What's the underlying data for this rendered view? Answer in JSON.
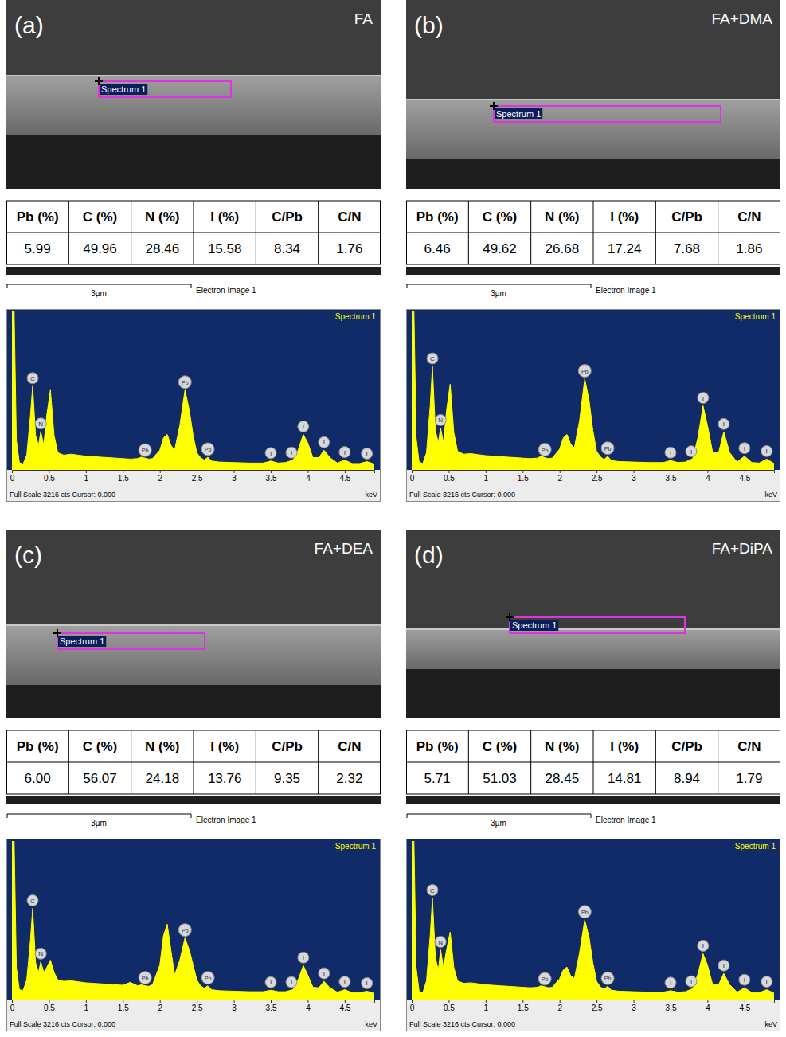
{
  "panels": [
    {
      "letter": "(a)",
      "sample": "FA",
      "spectrum_box": "Spectrum 1",
      "scale_bar": "3µm",
      "image_label": "Electron Image 1",
      "table": {
        "headers": [
          "Pb (%)",
          "C (%)",
          "N (%)",
          "I (%)",
          "C/Pb",
          "C/N"
        ],
        "rows": [
          [
            "5.99",
            "49.96",
            "28.46",
            "15.58",
            "8.34",
            "1.76"
          ]
        ]
      }
    },
    {
      "letter": "(b)",
      "sample": "FA+DMA",
      "spectrum_box": "Spectrum 1",
      "scale_bar": "3µm",
      "image_label": "Electron Image 1",
      "table": {
        "headers": [
          "Pb (%)",
          "C (%)",
          "N (%)",
          "I (%)",
          "C/Pb",
          "C/N"
        ],
        "rows": [
          [
            "6.46",
            "49.62",
            "26.68",
            "17.24",
            "7.68",
            "1.86"
          ]
        ]
      }
    },
    {
      "letter": "(c)",
      "sample": "FA+DEA",
      "spectrum_box": "Spectrum 1",
      "scale_bar": "3µm",
      "image_label": "Electron Image 1",
      "table": {
        "headers": [
          "Pb (%)",
          "C (%)",
          "N (%)",
          "I (%)",
          "C/Pb",
          "C/N"
        ],
        "rows": [
          [
            "6.00",
            "56.07",
            "24.18",
            "13.76",
            "9.35",
            "2.32"
          ]
        ]
      }
    },
    {
      "letter": "(d)",
      "sample": "FA+DiPA",
      "spectrum_box": "Spectrum 1",
      "scale_bar": "3µm",
      "image_label": "Electron Image 1",
      "table": {
        "headers": [
          "Pb (%)",
          "C (%)",
          "N (%)",
          "I (%)",
          "C/Pb",
          "C/N"
        ],
        "rows": [
          [
            "5.71",
            "51.03",
            "28.45",
            "14.81",
            "8.94",
            "1.79"
          ]
        ]
      }
    }
  ],
  "chart_data": [
    {
      "type": "area",
      "title": "Spectrum 1",
      "subtitle": "Full Scale 3216 cts Cursor: 0.000",
      "x_label": "keV",
      "color": "#ffff00",
      "x": [
        0,
        0.03,
        0.06,
        0.1,
        0.15,
        0.2,
        0.25,
        0.28,
        0.32,
        0.36,
        0.39,
        0.43,
        0.47,
        0.52,
        0.57,
        0.62,
        0.7,
        0.8,
        0.9,
        1.0,
        1.1,
        1.2,
        1.3,
        1.4,
        1.5,
        1.6,
        1.7,
        1.75,
        1.8,
        1.85,
        1.9,
        2.0,
        2.05,
        2.1,
        2.15,
        2.2,
        2.27,
        2.34,
        2.4,
        2.45,
        2.5,
        2.55,
        2.6,
        2.65,
        2.7,
        2.8,
        3.0,
        3.2,
        3.4,
        3.5,
        3.6,
        3.7,
        3.8,
        3.87,
        3.94,
        4.0,
        4.07,
        4.15,
        4.22,
        4.3,
        4.4,
        4.5,
        4.6,
        4.7,
        4.8,
        4.9
      ],
      "values": [
        3216,
        3216,
        600,
        150,
        120,
        300,
        1100,
        1700,
        700,
        500,
        780,
        500,
        1100,
        1620,
        700,
        350,
        300,
        320,
        300,
        280,
        270,
        260,
        250,
        240,
        230,
        220,
        230,
        260,
        240,
        220,
        230,
        400,
        650,
        720,
        500,
        400,
        900,
        1620,
        1200,
        700,
        350,
        250,
        200,
        260,
        180,
        160,
        150,
        140,
        140,
        180,
        140,
        150,
        200,
        400,
        720,
        550,
        250,
        250,
        400,
        250,
        140,
        200,
        130,
        130,
        170,
        120
      ],
      "xlim": [
        0,
        4.9
      ],
      "xticks": [
        0,
        0.5,
        1,
        1.5,
        2,
        2.5,
        3,
        3.5,
        4,
        4.5
      ],
      "ylim": [
        0,
        3216
      ],
      "grid": false,
      "tick_labels": "x",
      "annotations": [
        {
          "text": "C",
          "x": 0.28
        },
        {
          "text": "N",
          "x": 0.39
        },
        {
          "text": "Pb",
          "x": 1.8
        },
        {
          "text": "Pb",
          "x": 2.34
        },
        {
          "text": "Pb",
          "x": 2.65
        },
        {
          "text": "I",
          "x": 3.5
        },
        {
          "text": "I",
          "x": 3.78
        },
        {
          "text": "I",
          "x": 3.94
        },
        {
          "text": "I",
          "x": 4.22
        },
        {
          "text": "I",
          "x": 4.5
        },
        {
          "text": "I",
          "x": 4.8
        }
      ]
    },
    {
      "type": "area",
      "title": "Spectrum 1",
      "subtitle": "Full Scale 3216 cts Cursor: 0.000",
      "x_label": "keV",
      "color": "#ffff00",
      "x": [
        0,
        0.03,
        0.06,
        0.1,
        0.15,
        0.2,
        0.25,
        0.28,
        0.32,
        0.36,
        0.39,
        0.43,
        0.47,
        0.52,
        0.57,
        0.62,
        0.7,
        0.8,
        0.9,
        1.0,
        1.1,
        1.2,
        1.3,
        1.4,
        1.5,
        1.6,
        1.7,
        1.75,
        1.8,
        1.85,
        1.9,
        2.0,
        2.05,
        2.1,
        2.15,
        2.2,
        2.27,
        2.34,
        2.4,
        2.45,
        2.5,
        2.55,
        2.6,
        2.65,
        2.7,
        2.8,
        3.0,
        3.2,
        3.4,
        3.5,
        3.6,
        3.7,
        3.8,
        3.87,
        3.94,
        4.0,
        4.07,
        4.15,
        4.22,
        4.3,
        4.4,
        4.5,
        4.6,
        4.7,
        4.8,
        4.9
      ],
      "values": [
        3216,
        3216,
        650,
        160,
        130,
        350,
        1300,
        2100,
        800,
        550,
        850,
        550,
        1200,
        1740,
        750,
        380,
        320,
        330,
        310,
        290,
        280,
        270,
        260,
        250,
        240,
        230,
        240,
        280,
        250,
        230,
        240,
        420,
        650,
        720,
        520,
        450,
        1000,
        1850,
        1400,
        800,
        380,
        270,
        210,
        280,
        190,
        170,
        160,
        150,
        150,
        190,
        150,
        160,
        230,
        650,
        1300,
        900,
        350,
        350,
        770,
        350,
        160,
        280,
        150,
        140,
        220,
        130
      ],
      "xlim": [
        0,
        4.9
      ],
      "xticks": [
        0,
        0.5,
        1,
        1.5,
        2,
        2.5,
        3,
        3.5,
        4,
        4.5
      ],
      "ylim": [
        0,
        3216
      ],
      "grid": false,
      "tick_labels": "x",
      "annotations": [
        {
          "text": "C",
          "x": 0.28
        },
        {
          "text": "N",
          "x": 0.39
        },
        {
          "text": "Pb",
          "x": 1.8
        },
        {
          "text": "Pb",
          "x": 2.34
        },
        {
          "text": "Pb",
          "x": 2.65
        },
        {
          "text": "I",
          "x": 3.5
        },
        {
          "text": "I",
          "x": 3.78
        },
        {
          "text": "I",
          "x": 3.94
        },
        {
          "text": "I",
          "x": 4.22
        },
        {
          "text": "I",
          "x": 4.5
        },
        {
          "text": "I",
          "x": 4.8
        }
      ]
    },
    {
      "type": "area",
      "title": "Spectrum 1",
      "subtitle": "Full Scale 3216 cts Cursor: 0.000",
      "x_label": "keV",
      "color": "#ffff00",
      "x": [
        0,
        0.03,
        0.06,
        0.1,
        0.15,
        0.2,
        0.25,
        0.28,
        0.32,
        0.36,
        0.39,
        0.43,
        0.47,
        0.52,
        0.57,
        0.62,
        0.7,
        0.8,
        0.9,
        1.0,
        1.1,
        1.2,
        1.3,
        1.4,
        1.5,
        1.6,
        1.7,
        1.75,
        1.8,
        1.85,
        1.9,
        2.0,
        2.05,
        2.1,
        2.15,
        2.2,
        2.27,
        2.34,
        2.4,
        2.45,
        2.5,
        2.55,
        2.6,
        2.65,
        2.7,
        2.8,
        3.0,
        3.2,
        3.4,
        3.5,
        3.6,
        3.7,
        3.8,
        3.87,
        3.94,
        4.0,
        4.07,
        4.15,
        4.22,
        4.3,
        4.4,
        4.5,
        4.6,
        4.7,
        4.8,
        4.9
      ],
      "values": [
        3216,
        3216,
        650,
        200,
        180,
        400,
        1200,
        1850,
        750,
        550,
        770,
        550,
        650,
        800,
        550,
        400,
        370,
        380,
        360,
        340,
        330,
        320,
        310,
        300,
        290,
        350,
        280,
        300,
        280,
        270,
        300,
        700,
        1300,
        1530,
        1000,
        500,
        800,
        1250,
        1000,
        700,
        400,
        280,
        230,
        280,
        200,
        180,
        170,
        160,
        160,
        190,
        160,
        160,
        200,
        400,
        690,
        500,
        250,
        240,
        370,
        240,
        150,
        200,
        140,
        140,
        170,
        130
      ],
      "xlim": [
        0,
        4.9
      ],
      "xticks": [
        0,
        0.5,
        1,
        1.5,
        2,
        2.5,
        3,
        3.5,
        4,
        4.5
      ],
      "ylim": [
        0,
        3216
      ],
      "grid": false,
      "tick_labels": "x",
      "annotations": [
        {
          "text": "C",
          "x": 0.28
        },
        {
          "text": "N",
          "x": 0.39
        },
        {
          "text": "Pb",
          "x": 1.8
        },
        {
          "text": "Pb",
          "x": 2.34
        },
        {
          "text": "Pb",
          "x": 2.65
        },
        {
          "text": "I",
          "x": 3.5
        },
        {
          "text": "I",
          "x": 3.78
        },
        {
          "text": "I",
          "x": 3.94
        },
        {
          "text": "I",
          "x": 4.22
        },
        {
          "text": "I",
          "x": 4.5
        },
        {
          "text": "I",
          "x": 4.8
        }
      ]
    },
    {
      "type": "area",
      "title": "Spectrum 1",
      "subtitle": "Full Scale 3216 cts Cursor: 0.000",
      "x_label": "keV",
      "color": "#ffff00",
      "x": [
        0,
        0.03,
        0.06,
        0.1,
        0.15,
        0.2,
        0.25,
        0.28,
        0.32,
        0.36,
        0.39,
        0.43,
        0.47,
        0.52,
        0.57,
        0.62,
        0.7,
        0.8,
        0.9,
        1.0,
        1.1,
        1.2,
        1.3,
        1.4,
        1.5,
        1.6,
        1.7,
        1.75,
        1.8,
        1.85,
        1.9,
        2.0,
        2.05,
        2.1,
        2.15,
        2.2,
        2.27,
        2.34,
        2.4,
        2.45,
        2.5,
        2.55,
        2.6,
        2.65,
        2.7,
        2.8,
        3.0,
        3.2,
        3.4,
        3.5,
        3.6,
        3.7,
        3.8,
        3.87,
        3.94,
        4.0,
        4.07,
        4.15,
        4.22,
        4.3,
        4.4,
        4.5,
        4.6,
        4.7,
        4.8,
        4.9
      ],
      "values": [
        3216,
        3216,
        650,
        170,
        140,
        380,
        1300,
        2060,
        850,
        600,
        1010,
        650,
        1000,
        1370,
        650,
        380,
        330,
        340,
        320,
        300,
        290,
        280,
        270,
        260,
        250,
        240,
        250,
        280,
        260,
        240,
        250,
        420,
        600,
        660,
        480,
        430,
        950,
        1620,
        1250,
        750,
        370,
        260,
        210,
        270,
        190,
        170,
        160,
        150,
        150,
        180,
        150,
        160,
        220,
        520,
        930,
        700,
        300,
        300,
        530,
        300,
        150,
        240,
        140,
        140,
        200,
        130
      ],
      "xlim": [
        0,
        4.9
      ],
      "xticks": [
        0,
        0.5,
        1,
        1.5,
        2,
        2.5,
        3,
        3.5,
        4,
        4.5
      ],
      "ylim": [
        0,
        3216
      ],
      "grid": false,
      "tick_labels": "x",
      "annotations": [
        {
          "text": "C",
          "x": 0.28
        },
        {
          "text": "N",
          "x": 0.39
        },
        {
          "text": "Pb",
          "x": 1.8
        },
        {
          "text": "Pb",
          "x": 2.34
        },
        {
          "text": "Pb",
          "x": 2.65
        },
        {
          "text": "I",
          "x": 3.5
        },
        {
          "text": "I",
          "x": 3.78
        },
        {
          "text": "I",
          "x": 3.94
        },
        {
          "text": "I",
          "x": 4.22
        },
        {
          "text": "I",
          "x": 4.5
        },
        {
          "text": "I",
          "x": 4.8
        }
      ]
    }
  ]
}
